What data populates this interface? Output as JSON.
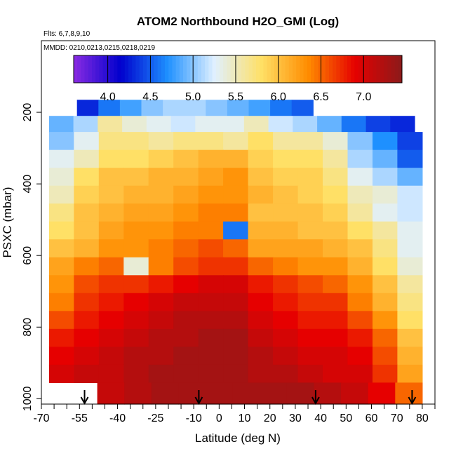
{
  "chart_data": {
    "type": "heatmap",
    "title": "ATOM2 Northbound H2O_GMI (Log)",
    "subtitle_flights": "Flts: 6,7,8,9,10",
    "subtitle_dates": "MMDD: 0210,0213,0215,0218,0219",
    "xlabel": "Latitude (deg N)",
    "ylabel": "PSXC (mbar)",
    "xlim": [
      -70,
      85
    ],
    "ylim": [
      1015,
      0
    ],
    "x_ticks": [
      -70,
      -55,
      -40,
      -25,
      -10,
      0,
      10,
      20,
      30,
      40,
      50,
      60,
      70,
      80
    ],
    "x_minor_ticks": [
      -65,
      -60,
      -50,
      -45,
      -35,
      -30,
      -20,
      -15,
      -5,
      5,
      15,
      25,
      35,
      45,
      55,
      65,
      75,
      85
    ],
    "y_ticks": [
      200,
      400,
      600,
      800,
      1000
    ],
    "colorbar": {
      "min": 3.6,
      "max": 7.45,
      "ticks": [
        4.0,
        4.5,
        5.0,
        5.5,
        6.0,
        6.5,
        7.0
      ],
      "tick_labels": [
        "4.0",
        "4.5",
        "5.0",
        "5.5",
        "6.0",
        "6.5",
        "7.0"
      ],
      "colors": [
        "#8a2be2",
        "#0000cd",
        "#1e90ff",
        "#e0f0ff",
        "#ffe066",
        "#ff8c00",
        "#e60000",
        "#8b1a1a"
      ]
    },
    "profile_markers_lat": [
      -53,
      -8,
      38,
      76
    ],
    "layers": [
      {
        "p": 190,
        "lat_range": [
          -56,
          37
        ],
        "values": [
          4.3,
          4.6,
          4.8,
          5.0,
          5.1,
          5.1,
          5.0,
          4.9,
          4.8,
          4.6,
          4.5
        ]
      },
      {
        "p": 230,
        "lat_range": [
          -67,
          77
        ],
        "values": [
          4.9,
          5.1,
          5.6,
          5.4,
          5.3,
          5.2,
          5.3,
          5.3,
          5.5,
          5.2,
          5.1,
          4.9,
          4.6,
          4.4,
          4.3
        ]
      },
      {
        "p": 280,
        "lat_range": [
          -67,
          80
        ],
        "values": [
          5.0,
          5.3,
          5.7,
          5.7,
          5.6,
          5.7,
          5.7,
          5.6,
          5.8,
          5.6,
          5.6,
          5.4,
          5.0,
          4.7,
          4.4
        ]
      },
      {
        "p": 330,
        "lat_range": [
          -67,
          80
        ],
        "values": [
          5.3,
          5.5,
          5.8,
          5.8,
          5.9,
          6.0,
          6.1,
          6.1,
          5.9,
          5.8,
          5.8,
          5.6,
          5.1,
          4.9,
          4.5
        ]
      },
      {
        "p": 380,
        "lat_range": [
          -67,
          80
        ],
        "values": [
          5.4,
          5.8,
          6.0,
          6.0,
          6.1,
          6.1,
          6.2,
          6.3,
          6.0,
          5.9,
          5.9,
          5.7,
          5.3,
          5.1,
          4.9
        ]
      },
      {
        "p": 430,
        "lat_range": [
          -67,
          80
        ],
        "values": [
          5.5,
          5.9,
          6.0,
          6.1,
          6.1,
          6.2,
          6.3,
          6.3,
          6.1,
          6.0,
          5.9,
          5.8,
          5.5,
          5.4,
          5.2
        ]
      },
      {
        "p": 480,
        "lat_range": [
          -67,
          80
        ],
        "values": [
          5.7,
          6.0,
          6.1,
          6.2,
          6.2,
          6.3,
          6.4,
          6.4,
          6.0,
          6.0,
          6.0,
          5.9,
          5.6,
          5.3,
          5.2
        ]
      },
      {
        "p": 530,
        "lat_range": [
          -67,
          80
        ],
        "values": [
          5.8,
          6.0,
          6.2,
          6.3,
          6.3,
          6.4,
          6.4,
          4.6,
          6.1,
          6.1,
          6.0,
          6.0,
          5.8,
          5.6,
          5.3
        ]
      },
      {
        "p": 580,
        "lat_range": [
          -67,
          80
        ],
        "values": [
          6.0,
          6.1,
          6.3,
          6.3,
          6.4,
          6.5,
          6.6,
          6.5,
          6.2,
          6.2,
          6.2,
          6.1,
          6.0,
          5.7,
          5.3
        ]
      },
      {
        "p": 630,
        "lat_range": [
          -67,
          80
        ],
        "values": [
          6.2,
          6.4,
          6.5,
          5.4,
          6.4,
          6.6,
          6.7,
          6.7,
          6.5,
          6.4,
          6.3,
          6.3,
          6.1,
          5.8,
          5.4
        ]
      },
      {
        "p": 680,
        "lat_range": [
          -67,
          80
        ],
        "values": [
          6.3,
          6.6,
          6.7,
          6.7,
          6.8,
          6.9,
          7.0,
          7.0,
          6.8,
          6.7,
          6.6,
          6.5,
          6.3,
          6.0,
          5.6
        ]
      },
      {
        "p": 730,
        "lat_range": [
          -67,
          80
        ],
        "values": [
          6.4,
          6.7,
          6.8,
          6.9,
          7.0,
          7.1,
          7.1,
          7.1,
          6.9,
          6.8,
          6.7,
          6.7,
          6.4,
          6.1,
          5.7
        ]
      },
      {
        "p": 780,
        "lat_range": [
          -67,
          80
        ],
        "values": [
          6.6,
          6.8,
          6.9,
          7.0,
          7.1,
          7.2,
          7.2,
          7.2,
          7.0,
          6.9,
          6.8,
          6.8,
          6.6,
          6.3,
          5.8
        ]
      },
      {
        "p": 830,
        "lat_range": [
          -67,
          80
        ],
        "values": [
          6.8,
          6.9,
          7.0,
          7.1,
          7.2,
          7.2,
          7.3,
          7.3,
          7.1,
          7.0,
          6.9,
          6.9,
          6.8,
          6.5,
          6.0
        ]
      },
      {
        "p": 880,
        "lat_range": [
          -67,
          80
        ],
        "values": [
          6.9,
          7.0,
          7.1,
          7.2,
          7.2,
          7.3,
          7.3,
          7.3,
          7.2,
          7.1,
          7.0,
          7.0,
          6.9,
          6.6,
          6.1
        ]
      },
      {
        "p": 930,
        "lat_range": [
          -67,
          80
        ],
        "values": [
          7.0,
          7.1,
          7.1,
          7.2,
          7.3,
          7.3,
          7.3,
          7.3,
          7.2,
          7.2,
          7.1,
          7.0,
          7.0,
          6.7,
          6.2
        ]
      },
      {
        "p": 980,
        "lat_range": [
          -48,
          80
        ],
        "values": [
          7.1,
          7.2,
          7.3,
          7.3,
          7.3,
          7.3,
          7.3,
          7.3,
          7.2,
          7.1,
          6.9,
          6.5
        ]
      }
    ],
    "grid": false,
    "legend": "colorbar-top-inset"
  }
}
